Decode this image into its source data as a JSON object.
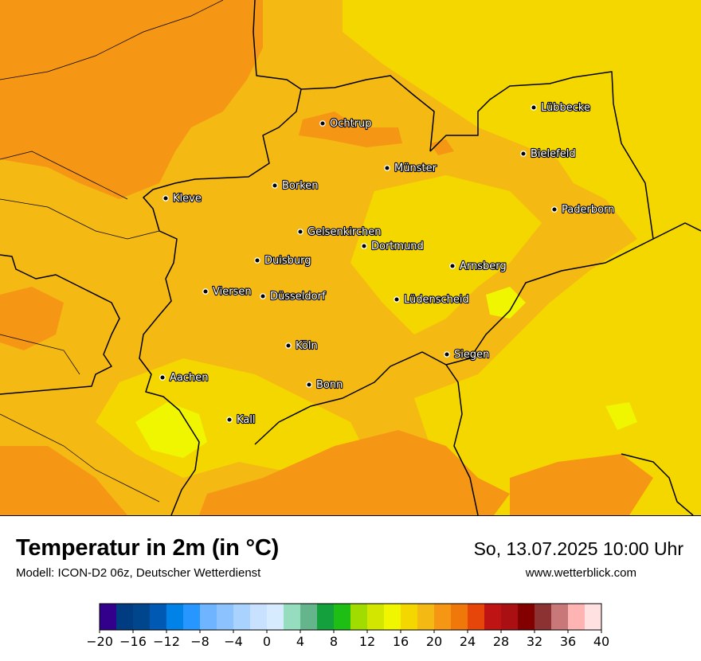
{
  "map": {
    "cities": [
      {
        "name": "Lübbecke"
      },
      {
        "name": "Ochtrup"
      },
      {
        "name": "Bielefeld"
      },
      {
        "name": "Münster"
      },
      {
        "name": "Borken"
      },
      {
        "name": "Kleve"
      },
      {
        "name": "Paderborn"
      },
      {
        "name": "Gelsenkirchen"
      },
      {
        "name": "Dortmund"
      },
      {
        "name": "Duisburg"
      },
      {
        "name": "Arnsberg"
      },
      {
        "name": "Viersen"
      },
      {
        "name": "Düsseldorf"
      },
      {
        "name": "Lüdenscheid"
      },
      {
        "name": "Köln"
      },
      {
        "name": "Siegen"
      },
      {
        "name": "Aachen"
      },
      {
        "name": "Bonn"
      },
      {
        "name": "Kall"
      }
    ]
  },
  "footer": {
    "title": "Temperatur in 2m (in °C)",
    "model": "Modell: ICON-D2 06z, Deutscher Wetterdienst",
    "datetime": "So, 13.07.2025 10:00 Uhr",
    "website": "www.wetterblick.com"
  },
  "legend": {
    "tick_labels": [
      "−20",
      "−16",
      "−12",
      "−8",
      "−4",
      "0",
      "4",
      "8",
      "12",
      "16",
      "20",
      "24",
      "28",
      "32",
      "36",
      "40"
    ],
    "colors": [
      "#33008c",
      "#003c82",
      "#00468c",
      "#005ab4",
      "#0082e6",
      "#2896ff",
      "#6eb4ff",
      "#8cc3ff",
      "#aad2ff",
      "#c8e1ff",
      "#d7ebff",
      "#96dcbe",
      "#64b48c",
      "#14a03c",
      "#1ebe14",
      "#a0dc00",
      "#d2e600",
      "#f0f500",
      "#f5d700",
      "#f5b914",
      "#f59614",
      "#f0780a",
      "#e6460a",
      "#be1414",
      "#aa0f14",
      "#820000",
      "#8c3232",
      "#c87878",
      "#ffb4b4",
      "#ffe1e1"
    ],
    "min": -20,
    "max": 40
  }
}
